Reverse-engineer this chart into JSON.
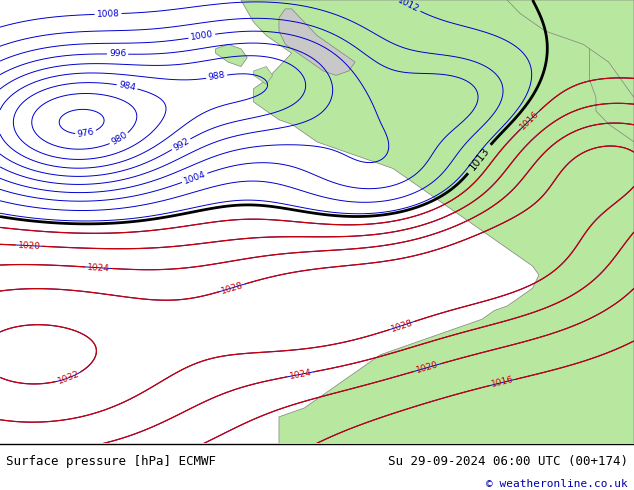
{
  "title_left": "Surface pressure [hPa] ECMWF",
  "title_right": "Su 29-09-2024 06:00 UTC (00+174)",
  "copyright": "© weatheronline.co.uk",
  "ocean_color": "#d8d8d8",
  "land_color": "#b8e8a0",
  "land_edge_color": "#808080",
  "blue_color": "#0000cc",
  "red_color": "#cc0000",
  "black_color": "#000000",
  "footer_bg": "#ffffff",
  "figsize": [
    6.34,
    4.9
  ],
  "dpi": 100
}
